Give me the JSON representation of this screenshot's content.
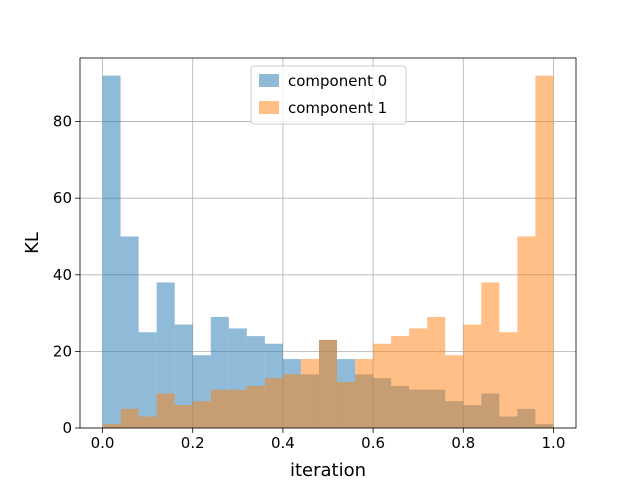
{
  "chart_data": {
    "type": "bar",
    "subtype": "overlapping-histogram",
    "title": "",
    "xlabel": "iteration",
    "ylabel": "KL",
    "xlim": [
      -0.05,
      1.05
    ],
    "ylim": [
      0,
      96.6
    ],
    "xticks": [
      "0.0",
      "0.2",
      "0.4",
      "0.6",
      "0.8",
      "1.0"
    ],
    "yticks": [
      "0",
      "20",
      "40",
      "60",
      "80"
    ],
    "grid": true,
    "legend": "upper center",
    "bin_edges": [
      0.0,
      0.04,
      0.08,
      0.12,
      0.16,
      0.2,
      0.24,
      0.28,
      0.32,
      0.36,
      0.4,
      0.44,
      0.48,
      0.52,
      0.56,
      0.6,
      0.64,
      0.68,
      0.72,
      0.76,
      0.8,
      0.84,
      0.88,
      0.92,
      0.96,
      1.0
    ],
    "series": [
      {
        "name": "component 0",
        "color": "#1f77b4",
        "alpha": 0.5,
        "values": [
          92,
          50,
          25,
          38,
          27,
          19,
          29,
          26,
          24,
          22,
          18,
          14,
          23,
          18,
          14,
          13,
          11,
          10,
          10,
          7,
          6,
          9,
          3,
          5,
          1
        ]
      },
      {
        "name": "component 1",
        "color": "#ff7f0e",
        "alpha": 0.5,
        "values": [
          1,
          5,
          3,
          9,
          6,
          7,
          10,
          10,
          11,
          13,
          14,
          18,
          23,
          12,
          18,
          22,
          24,
          26,
          29,
          19,
          27,
          38,
          25,
          50,
          92
        ]
      }
    ]
  }
}
